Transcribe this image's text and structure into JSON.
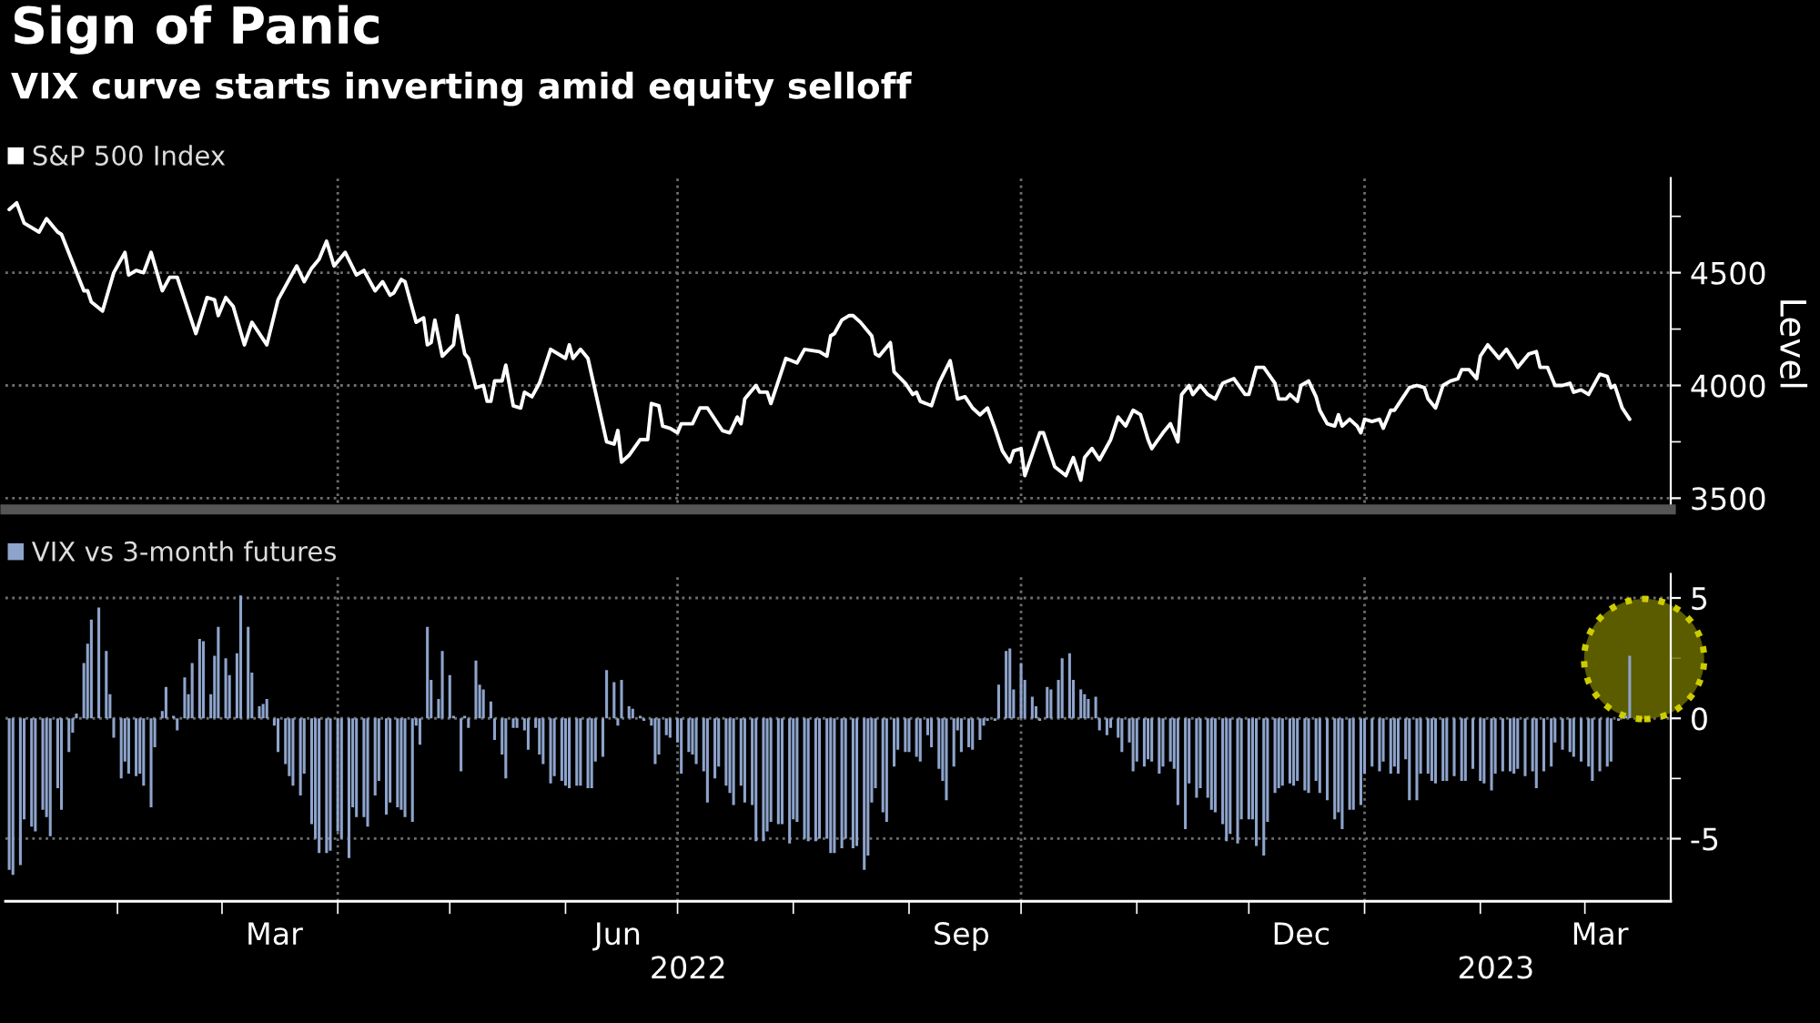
{
  "chart_data": [
    {
      "type": "line",
      "title": "Sign of Panic",
      "subtitle": "VIX curve starts inverting amid equity selloff",
      "ylabel": "Level",
      "x": [
        "2022-01-03",
        "2022-01-05",
        "2022-01-07",
        "2022-01-11",
        "2022-01-13",
        "2022-01-16",
        "2022-01-17",
        "2022-01-23",
        "2022-01-24",
        "2022-01-25",
        "2022-01-28",
        "2022-01-31",
        "2022-02-03",
        "2022-02-04",
        "2022-02-06",
        "2022-02-08",
        "2022-02-10",
        "2022-02-13",
        "2022-02-15",
        "2022-02-17",
        "2022-02-19",
        "2022-02-22",
        "2022-02-25",
        "2022-02-27",
        "2022-02-28",
        "2022-03-02",
        "2022-03-04",
        "2022-03-07",
        "2022-03-09",
        "2022-03-13",
        "2022-03-16",
        "2022-03-19",
        "2022-03-21",
        "2022-03-23",
        "2022-03-25",
        "2022-03-27",
        "2022-03-29",
        "2022-03-31",
        "2022-04-03",
        "2022-04-06",
        "2022-04-08",
        "2022-04-11",
        "2022-04-13",
        "2022-04-15",
        "2022-04-16",
        "2022-04-18",
        "2022-04-19",
        "2022-04-22",
        "2022-04-24",
        "2022-04-25",
        "2022-04-26",
        "2022-04-27",
        "2022-04-29",
        "2022-05-02",
        "2022-05-03",
        "2022-05-05",
        "2022-05-06",
        "2022-05-08",
        "2022-05-10",
        "2022-05-11",
        "2022-05-12",
        "2022-05-13",
        "2022-05-15",
        "2022-05-16",
        "2022-05-18",
        "2022-05-20",
        "2022-05-21",
        "2022-05-23",
        "2022-05-25",
        "2022-05-28",
        "2022-06-01",
        "2022-06-02",
        "2022-06-03",
        "2022-06-05",
        "2022-06-07",
        "2022-06-12",
        "2022-06-14",
        "2022-06-15",
        "2022-06-16",
        "2022-06-18",
        "2022-06-21",
        "2022-06-23",
        "2022-06-24",
        "2022-06-26",
        "2022-06-27",
        "2022-06-29",
        "2022-07-01",
        "2022-07-02",
        "2022-07-05",
        "2022-07-07",
        "2022-07-09",
        "2022-07-13",
        "2022-07-15",
        "2022-07-17",
        "2022-07-18",
        "2022-07-19",
        "2022-07-22",
        "2022-07-23",
        "2022-07-25",
        "2022-07-26",
        "2022-07-30",
        "2022-08-02",
        "2022-08-04",
        "2022-08-08",
        "2022-08-10",
        "2022-08-11",
        "2022-08-12",
        "2022-08-14",
        "2022-08-16",
        "2022-08-17",
        "2022-08-19",
        "2022-08-22",
        "2022-08-23",
        "2022-08-24",
        "2022-08-27",
        "2022-08-28",
        "2022-08-31",
        "2022-09-02",
        "2022-09-03",
        "2022-09-04",
        "2022-09-07",
        "2022-09-09",
        "2022-09-12",
        "2022-09-14",
        "2022-09-16",
        "2022-09-18",
        "2022-09-20",
        "2022-09-22",
        "2022-09-24",
        "2022-09-26",
        "2022-09-28",
        "2022-09-29",
        "2022-10-01",
        "2022-10-02",
        "2022-10-06",
        "2022-10-07",
        "2022-10-10",
        "2022-10-13",
        "2022-10-15",
        "2022-10-17",
        "2022-10-18",
        "2022-10-20",
        "2022-10-22",
        "2022-10-25",
        "2022-10-27",
        "2022-10-29",
        "2022-10-31",
        "2022-11-02",
        "2022-11-04",
        "2022-11-05",
        "2022-11-08",
        "2022-11-10",
        "2022-11-12",
        "2022-11-13",
        "2022-11-15",
        "2022-11-16",
        "2022-11-18",
        "2022-11-20",
        "2022-11-22",
        "2022-11-24",
        "2022-11-27",
        "2022-11-30",
        "2022-12-01",
        "2022-12-03",
        "2022-12-05",
        "2022-12-08",
        "2022-12-09",
        "2022-12-11",
        "2022-12-12",
        "2022-12-14",
        "2022-12-15",
        "2022-12-17",
        "2022-12-19",
        "2022-12-20",
        "2022-12-22",
        "2022-12-24",
        "2022-12-25",
        "2022-12-26",
        "2022-12-28",
        "2022-12-30",
        "2022-12-31",
        "2023-01-01",
        "2023-01-03",
        "2023-01-05",
        "2023-01-06",
        "2023-01-08",
        "2023-01-09",
        "2023-01-11",
        "2023-01-13",
        "2023-01-15",
        "2023-01-17",
        "2023-01-18",
        "2023-01-20",
        "2023-01-22",
        "2023-01-24",
        "2023-01-26",
        "2023-01-27",
        "2023-01-29",
        "2023-01-31",
        "2023-02-01",
        "2023-02-03",
        "2023-02-05",
        "2023-02-06",
        "2023-02-08",
        "2023-02-10",
        "2023-02-11",
        "2023-02-14",
        "2023-02-16",
        "2023-02-17",
        "2023-02-19",
        "2023-02-21",
        "2023-02-23",
        "2023-02-25",
        "2023-02-26",
        "2023-02-28",
        "2023-03-02",
        "2023-03-05",
        "2023-03-07",
        "2023-03-08",
        "2023-03-09",
        "2023-03-11",
        "2023-03-13"
      ],
      "series": [
        {
          "name": "S&P 500 Index",
          "color": "#ffffff",
          "values": [
            4780,
            4810,
            4720,
            4680,
            4740,
            4680,
            4670,
            4420,
            4420,
            4370,
            4330,
            4500,
            4590,
            4490,
            4510,
            4500,
            4590,
            4420,
            4480,
            4480,
            4380,
            4230,
            4390,
            4380,
            4310,
            4390,
            4350,
            4180,
            4280,
            4180,
            4380,
            4470,
            4530,
            4460,
            4520,
            4560,
            4640,
            4530,
            4590,
            4490,
            4510,
            4420,
            4460,
            4400,
            4410,
            4470,
            4460,
            4280,
            4300,
            4180,
            4190,
            4290,
            4130,
            4180,
            4310,
            4140,
            4120,
            3990,
            4000,
            3930,
            3930,
            4020,
            4020,
            4090,
            3910,
            3900,
            3970,
            3950,
            4010,
            4160,
            4120,
            4180,
            4120,
            4160,
            4120,
            3750,
            3740,
            3800,
            3660,
            3690,
            3760,
            3760,
            3920,
            3910,
            3820,
            3810,
            3790,
            3830,
            3830,
            3900,
            3900,
            3800,
            3790,
            3860,
            3830,
            3940,
            4000,
            3970,
            3970,
            3920,
            4120,
            4100,
            4160,
            4150,
            4130,
            4220,
            4230,
            4290,
            4310,
            4310,
            4280,
            4220,
            4140,
            4130,
            4190,
            4060,
            4010,
            3960,
            3970,
            3930,
            3910,
            4010,
            4110,
            3940,
            3950,
            3900,
            3870,
            3900,
            3810,
            3710,
            3660,
            3710,
            3720,
            3600,
            3790,
            3790,
            3640,
            3600,
            3680,
            3580,
            3680,
            3720,
            3670,
            3760,
            3860,
            3820,
            3890,
            3870,
            3760,
            3720,
            3790,
            3830,
            3750,
            3960,
            4000,
            3960,
            4000,
            3960,
            3940,
            4010,
            4030,
            3960,
            3960,
            4080,
            4080,
            4010,
            3940,
            3940,
            3960,
            3930,
            4000,
            4020,
            3950,
            3890,
            3830,
            3820,
            3870,
            3820,
            3850,
            3820,
            3790,
            3850,
            3840,
            3850,
            3810,
            3890,
            3890,
            3940,
            3990,
            4000,
            3990,
            3940,
            3900,
            4000,
            4020,
            4030,
            4070,
            4070,
            4030,
            4130,
            4180,
            4140,
            4120,
            4160,
            4110,
            4080,
            4140,
            4150,
            4080,
            4080,
            4000,
            4000,
            4010,
            3970,
            3980,
            3960,
            4050,
            4040,
            3990,
            4000,
            3900,
            3850
          ]
        }
      ],
      "xlim": [
        "2022-01-02",
        "2023-03-24"
      ],
      "ylim": [
        3450,
        4920
      ],
      "yticks": [
        3500,
        {
          "value": 3750,
          "label": null
        },
        4000,
        {
          "value": 4250,
          "label": null
        },
        4500,
        {
          "value": 4750,
          "label": null
        }
      ],
      "grid": "y",
      "legend": "top left",
      "tick_labels": "y",
      "ref_lines": [
        {
          "axis": "x",
          "value": "2022-04-01",
          "color": "#6e6e6e",
          "line_style": "dotted"
        },
        {
          "axis": "x",
          "value": "2022-07-01",
          "color": "#6e6e6e",
          "line_style": "dotted"
        },
        {
          "axis": "x",
          "value": "2022-10-01",
          "color": "#6e6e6e",
          "line_style": "dotted"
        },
        {
          "axis": "x",
          "value": "2023-01-01",
          "color": "#6e6e6e",
          "line_style": "dotted"
        }
      ]
    },
    {
      "type": "bar",
      "x": [
        "2022-01-03",
        "2022-01-04",
        "2022-01-06",
        "2022-01-07",
        "2022-01-09",
        "2022-01-10",
        "2022-01-12",
        "2022-01-13",
        "2022-01-14",
        "2022-01-16",
        "2022-01-17",
        "2022-01-19",
        "2022-01-20",
        "2022-01-21",
        "2022-01-23",
        "2022-01-24",
        "2022-01-25",
        "2022-01-27",
        "2022-01-29",
        "2022-01-30",
        "2022-01-31",
        "2022-02-02",
        "2022-02-03",
        "2022-02-04",
        "2022-02-06",
        "2022-02-07",
        "2022-02-08",
        "2022-02-10",
        "2022-02-11",
        "2022-02-13",
        "2022-02-14",
        "2022-02-16",
        "2022-02-17",
        "2022-02-19",
        "2022-02-20",
        "2022-02-21",
        "2022-02-23",
        "2022-02-24",
        "2022-02-26",
        "2022-02-27",
        "2022-02-28",
        "2022-03-02",
        "2022-03-03",
        "2022-03-05",
        "2022-03-06",
        "2022-03-08",
        "2022-03-09",
        "2022-03-11",
        "2022-03-12",
        "2022-03-13",
        "2022-03-15",
        "2022-03-16",
        "2022-03-18",
        "2022-03-19",
        "2022-03-20",
        "2022-03-22",
        "2022-03-23",
        "2022-03-25",
        "2022-03-26",
        "2022-03-27",
        "2022-03-29",
        "2022-03-30",
        "2022-04-01",
        "2022-04-02",
        "2022-04-04",
        "2022-04-05",
        "2022-04-06",
        "2022-04-08",
        "2022-04-09",
        "2022-04-11",
        "2022-04-12",
        "2022-04-14",
        "2022-04-15",
        "2022-04-17",
        "2022-04-18",
        "2022-04-19",
        "2022-04-21",
        "2022-04-22",
        "2022-04-23",
        "2022-04-25",
        "2022-04-26",
        "2022-04-28",
        "2022-04-29",
        "2022-05-01",
        "2022-05-02",
        "2022-05-04",
        "2022-05-05",
        "2022-05-06",
        "2022-05-08",
        "2022-05-09",
        "2022-05-10",
        "2022-05-12",
        "2022-05-13",
        "2022-05-15",
        "2022-05-16",
        "2022-05-18",
        "2022-05-19",
        "2022-05-21",
        "2022-05-22",
        "2022-05-24",
        "2022-05-25",
        "2022-05-26",
        "2022-05-28",
        "2022-05-29",
        "2022-05-31",
        "2022-06-01",
        "2022-06-02",
        "2022-06-04",
        "2022-06-05",
        "2022-06-07",
        "2022-06-08",
        "2022-06-09",
        "2022-06-11",
        "2022-06-12",
        "2022-06-14",
        "2022-06-15",
        "2022-06-16",
        "2022-06-18",
        "2022-06-19",
        "2022-06-21",
        "2022-06-22",
        "2022-06-24",
        "2022-06-25",
        "2022-06-26",
        "2022-06-28",
        "2022-06-29",
        "2022-07-01",
        "2022-07-02",
        "2022-07-04",
        "2022-07-05",
        "2022-07-06",
        "2022-07-08",
        "2022-07-09",
        "2022-07-11",
        "2022-07-12",
        "2022-07-14",
        "2022-07-15",
        "2022-07-16",
        "2022-07-18",
        "2022-07-19",
        "2022-07-21",
        "2022-07-22",
        "2022-07-24",
        "2022-07-25",
        "2022-07-26",
        "2022-07-28",
        "2022-07-29",
        "2022-07-31",
        "2022-08-01",
        "2022-08-02",
        "2022-08-04",
        "2022-08-05",
        "2022-08-07",
        "2022-08-08",
        "2022-08-10",
        "2022-08-11",
        "2022-08-12",
        "2022-08-14",
        "2022-08-15",
        "2022-08-17",
        "2022-08-18",
        "2022-08-20",
        "2022-08-21",
        "2022-08-22",
        "2022-08-23",
        "2022-08-25",
        "2022-08-26",
        "2022-08-28",
        "2022-08-29",
        "2022-08-31",
        "2022-09-01",
        "2022-09-03",
        "2022-09-04",
        "2022-09-06",
        "2022-09-07",
        "2022-09-09",
        "2022-09-10",
        "2022-09-11",
        "2022-09-13",
        "2022-09-14",
        "2022-09-15",
        "2022-09-17",
        "2022-09-18",
        "2022-09-20",
        "2022-09-21",
        "2022-09-22",
        "2022-09-24",
        "2022-09-25",
        "2022-09-27",
        "2022-09-28",
        "2022-09-29",
        "2022-10-01",
        "2022-10-02",
        "2022-10-04",
        "2022-10-05",
        "2022-10-06",
        "2022-10-08",
        "2022-10-09",
        "2022-10-11",
        "2022-10-12",
        "2022-10-14",
        "2022-10-15",
        "2022-10-17",
        "2022-10-18",
        "2022-10-19",
        "2022-10-21",
        "2022-10-22",
        "2022-10-24",
        "2022-10-25",
        "2022-10-27",
        "2022-10-28",
        "2022-10-30",
        "2022-10-31",
        "2022-11-01",
        "2022-11-03",
        "2022-11-04",
        "2022-11-05",
        "2022-11-07",
        "2022-11-08",
        "2022-11-10",
        "2022-11-11",
        "2022-11-12",
        "2022-11-14",
        "2022-11-15",
        "2022-11-17",
        "2022-11-18",
        "2022-11-20",
        "2022-11-21",
        "2022-11-22",
        "2022-11-24",
        "2022-11-25",
        "2022-11-26",
        "2022-11-28",
        "2022-11-29",
        "2022-12-01",
        "2022-12-02",
        "2022-12-03",
        "2022-12-05",
        "2022-12-06",
        "2022-12-08",
        "2022-12-09",
        "2022-12-10",
        "2022-12-12",
        "2022-12-13",
        "2022-12-14",
        "2022-12-16",
        "2022-12-17",
        "2022-12-19",
        "2022-12-20",
        "2022-12-22",
        "2022-12-24",
        "2022-12-25",
        "2022-12-26",
        "2022-12-28",
        "2022-12-29",
        "2022-12-31",
        "2023-01-01",
        "2023-01-03",
        "2023-01-05",
        "2023-01-06",
        "2023-01-08",
        "2023-01-09",
        "2023-01-10",
        "2023-01-12",
        "2023-01-13",
        "2023-01-15",
        "2023-01-16",
        "2023-01-18",
        "2023-01-19",
        "2023-01-20",
        "2023-01-22",
        "2023-01-23",
        "2023-01-25",
        "2023-01-27",
        "2023-01-28",
        "2023-01-30",
        "2023-02-01",
        "2023-02-02",
        "2023-02-04",
        "2023-02-05",
        "2023-02-07",
        "2023-02-09",
        "2023-02-10",
        "2023-02-11",
        "2023-02-13",
        "2023-02-15",
        "2023-02-16",
        "2023-02-18",
        "2023-02-20",
        "2023-02-21",
        "2023-02-23",
        "2023-02-25",
        "2023-02-26",
        "2023-02-28",
        "2023-03-02",
        "2023-03-03",
        "2023-03-05",
        "2023-03-07",
        "2023-03-08",
        "2023-03-10",
        "2023-03-12",
        "2023-03-13"
      ],
      "series": [
        {
          "name": "VIX vs 3-month futures",
          "color": "#8ea4cc",
          "values": [
            -6.3,
            -6.5,
            -6.1,
            -4.2,
            -4.5,
            -4.7,
            -3.8,
            -4.1,
            -4.9,
            -2.9,
            -3.8,
            -1.4,
            -0.6,
            0.2,
            2.3,
            3.1,
            4.1,
            4.6,
            2.8,
            1.0,
            -0.8,
            -2.5,
            -1.8,
            -2.3,
            -2.4,
            -2.3,
            -2.8,
            -3.7,
            -1.2,
            0.3,
            1.3,
            0.1,
            -0.5,
            1.7,
            1.0,
            2.3,
            3.3,
            3.2,
            1.0,
            2.6,
            3.8,
            2.5,
            1.8,
            2.7,
            5.1,
            3.8,
            1.9,
            0.5,
            0.6,
            0.8,
            -0.3,
            -1.4,
            -1.9,
            -2.4,
            -2.8,
            -3.2,
            -2.3,
            -4.4,
            -5.0,
            -5.6,
            -5.6,
            -5.5,
            -4.7,
            -5.0,
            -5.8,
            -3.7,
            -4.1,
            -4.1,
            -4.5,
            -3.2,
            -2.6,
            -4.0,
            -3.5,
            -3.7,
            -3.8,
            -4.1,
            -4.3,
            -0.3,
            -1.1,
            3.8,
            1.6,
            0.8,
            2.8,
            1.8,
            0.1,
            -2.2,
            0.1,
            -0.4,
            2.4,
            1.4,
            1.2,
            0.7,
            -0.9,
            -1.5,
            -2.5,
            -0.4,
            -0.4,
            -0.5,
            -1.3,
            -0.4,
            -1.5,
            -1.9,
            -2.7,
            -2.4,
            -2.6,
            -2.8,
            -2.9,
            -2.8,
            -2.8,
            -2.9,
            -2.9,
            -1.8,
            -1.6,
            2.0,
            1.5,
            -0.3,
            1.6,
            0.5,
            0.4,
            0.1,
            -0.1,
            -0.3,
            -1.9,
            -1.5,
            -0.7,
            -0.8,
            -1.0,
            -2.3,
            -1.4,
            -1.5,
            -1.9,
            -2.2,
            -3.5,
            -2.5,
            -2.0,
            -2.8,
            -3.1,
            -3.6,
            -2.8,
            -3.5,
            -3.6,
            -5.1,
            -5.1,
            -4.7,
            -4.3,
            -4.4,
            -4.4,
            -5.2,
            -4.2,
            -4.3,
            -5.0,
            -5.1,
            -5.1,
            -5.0,
            -5.0,
            -5.6,
            -5.6,
            -5.4,
            -5.0,
            -5.4,
            -5.3,
            -6.3,
            -5.7,
            -3.5,
            -2.9,
            -3.9,
            -4.3,
            -2.0,
            -1.3,
            -1.4,
            -1.4,
            -1.6,
            -1.8,
            -0.7,
            -1.2,
            -2.1,
            -2.6,
            -3.4,
            -2.0,
            -0.5,
            -1.4,
            -1.2,
            -1.3,
            -0.9,
            -0.3,
            -0.1,
            -0.1,
            1.4,
            2.8,
            2.9,
            1.2,
            2.3,
            1.6,
            0.9,
            0.5,
            -0.1,
            1.3,
            1.2,
            1.6,
            2.5,
            2.7,
            1.6,
            1.2,
            1.0,
            0.8,
            0.9,
            -0.5,
            -0.7,
            -0.4,
            -0.8,
            -1.4,
            -1.0,
            -2.2,
            -1.8,
            -2.0,
            -1.7,
            -1.8,
            -2.3,
            -2.0,
            -1.8,
            -2.1,
            -3.6,
            -4.6,
            -2.7,
            -3.3,
            -2.9,
            -3.3,
            -3.8,
            -3.9,
            -4.4,
            -5.1,
            -4.8,
            -5.2,
            -4.2,
            -4.2,
            -4.2,
            -5.3,
            -5.7,
            -4.3,
            -3.1,
            -2.9,
            -2.8,
            -2.7,
            -2.8,
            -2.6,
            -3.0,
            -3.1,
            -2.6,
            -3.1,
            -3.4,
            -4.2,
            -3.9,
            -4.6,
            -3.8,
            -3.8,
            -3.6,
            -2.3,
            -2.0,
            -2.2,
            -1.8,
            -2.3,
            -2.0,
            -2.3,
            -1.7,
            -3.4,
            -3.4,
            -2.3,
            -2.3,
            -2.6,
            -2.7,
            -2.6,
            -2.6,
            -2.4,
            -2.6,
            -2.6,
            -2.1,
            -2.6,
            -2.7,
            -3.0,
            -2.3,
            -2.2,
            -2.2,
            -2.3,
            -2.1,
            -2.4,
            -2.2,
            -2.9,
            -2.2,
            -2.0,
            -1.0,
            -1.3,
            -1.4,
            -1.6,
            -1.8,
            -2.0,
            -2.6,
            -2.2,
            -2.0,
            -1.8,
            -0.1,
            0.1,
            2.6
          ]
        }
      ],
      "xlim": [
        "2022-01-02",
        "2023-03-24"
      ],
      "ylim": [
        -7.6,
        6
      ],
      "yticks": [
        -5,
        {
          "value": -2.5,
          "label": null
        },
        0,
        {
          "value": 2.5,
          "label": null
        },
        5
      ],
      "xticks": [
        {
          "value": "2022-02-01",
          "label": null
        },
        {
          "value": "2022-03-01",
          "label": null
        },
        {
          "value": "2022-03-15",
          "label": "Mar"
        },
        {
          "value": "2022-04-01",
          "label": null
        },
        {
          "value": "2022-05-01",
          "label": null
        },
        {
          "value": "2022-06-01",
          "label": null
        },
        {
          "value": "2022-06-15",
          "label": "Jun"
        },
        {
          "value": "2022-07-01",
          "label": null
        },
        {
          "value": "2022-08-01",
          "label": null
        },
        {
          "value": "2022-09-01",
          "label": null
        },
        {
          "value": "2022-09-15",
          "label": "Sep"
        },
        {
          "value": "2022-10-01",
          "label": null
        },
        {
          "value": "2022-11-01",
          "label": null
        },
        {
          "value": "2022-12-01",
          "label": null
        },
        {
          "value": "2022-12-15",
          "label": "Dec"
        },
        {
          "value": "2023-01-01",
          "label": null
        },
        {
          "value": "2023-02-01",
          "label": null
        },
        {
          "value": "2023-03-01",
          "label": null
        },
        {
          "value": "2023-03-05",
          "label": "Mar"
        }
      ],
      "grid": "y",
      "legend": "top left",
      "ref_lines": [
        {
          "axis": "x",
          "value": "2022-04-01",
          "color": "#6e6e6e",
          "line_style": "dotted"
        },
        {
          "axis": "x",
          "value": "2022-07-01",
          "color": "#6e6e6e",
          "line_style": "dotted"
        },
        {
          "axis": "x",
          "value": "2022-10-01",
          "color": "#6e6e6e",
          "line_style": "dotted"
        },
        {
          "axis": "x",
          "value": "2023-01-01",
          "color": "#6e6e6e",
          "line_style": "dotted"
        }
      ],
      "annotations": [
        "2022",
        "2023"
      ]
    }
  ]
}
